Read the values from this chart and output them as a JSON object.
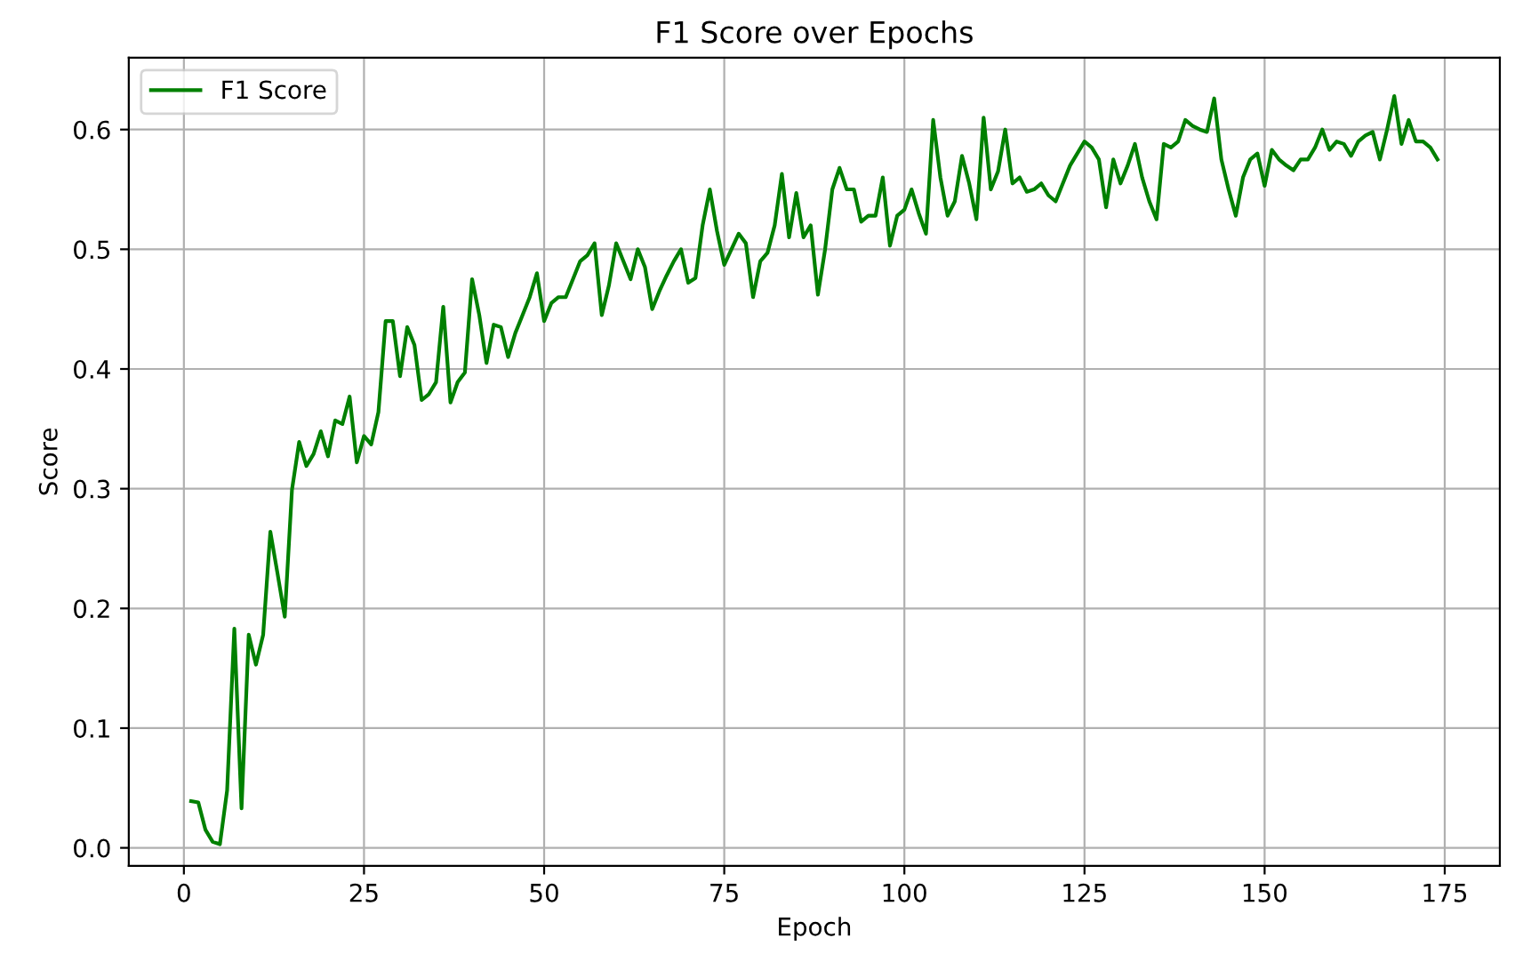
{
  "chart_data": {
    "type": "line",
    "title": "F1 Score over Epochs",
    "xlabel": "Epoch",
    "ylabel": "Score",
    "x": [
      1,
      2,
      3,
      4,
      5,
      6,
      7,
      8,
      9,
      10,
      11,
      12,
      13,
      14,
      15,
      16,
      17,
      18,
      19,
      20,
      21,
      22,
      23,
      24,
      25,
      26,
      27,
      28,
      29,
      30,
      31,
      32,
      33,
      34,
      35,
      36,
      37,
      38,
      39,
      40,
      41,
      42,
      43,
      44,
      45,
      46,
      47,
      48,
      49,
      50,
      51,
      52,
      53,
      54,
      55,
      56,
      57,
      58,
      59,
      60,
      61,
      62,
      63,
      64,
      65,
      66,
      67,
      68,
      69,
      70,
      71,
      72,
      73,
      74,
      75,
      76,
      77,
      78,
      79,
      80,
      81,
      82,
      83,
      84,
      85,
      86,
      87,
      88,
      89,
      90,
      91,
      92,
      93,
      94,
      95,
      96,
      97,
      98,
      99,
      100,
      101,
      102,
      103,
      104,
      105,
      106,
      107,
      108,
      109,
      110,
      111,
      112,
      113,
      114,
      115,
      116,
      117,
      118,
      119,
      120,
      121,
      122,
      123,
      124,
      125,
      126,
      127,
      128,
      129,
      130,
      131,
      132,
      133,
      134,
      135,
      136,
      137,
      138,
      139,
      140,
      141,
      142,
      143,
      144,
      145,
      146,
      147,
      148,
      149,
      150,
      151,
      152,
      153,
      154,
      155,
      156,
      157,
      158,
      159,
      160,
      161,
      162,
      163,
      164,
      165,
      166,
      167,
      168,
      169,
      170,
      171,
      172,
      173,
      174
    ],
    "series": [
      {
        "name": "F1 Score",
        "color": "#008000",
        "values": [
          0.039,
          0.038,
          0.015,
          0.005,
          0.003,
          0.048,
          0.183,
          0.033,
          0.178,
          0.153,
          0.178,
          0.264,
          0.229,
          0.193,
          0.299,
          0.339,
          0.319,
          0.329,
          0.348,
          0.327,
          0.357,
          0.354,
          0.377,
          0.322,
          0.344,
          0.337,
          0.364,
          0.44,
          0.44,
          0.394,
          0.435,
          0.42,
          0.374,
          0.379,
          0.389,
          0.452,
          0.372,
          0.389,
          0.397,
          0.475,
          0.445,
          0.405,
          0.437,
          0.435,
          0.41,
          0.43,
          0.445,
          0.46,
          0.48,
          0.44,
          0.455,
          0.46,
          0.46,
          0.475,
          0.49,
          0.495,
          0.505,
          0.445,
          0.47,
          0.505,
          0.49,
          0.475,
          0.5,
          0.485,
          0.45,
          0.465,
          0.478,
          0.49,
          0.5,
          0.472,
          0.476,
          0.52,
          0.55,
          0.515,
          0.487,
          0.5,
          0.513,
          0.505,
          0.46,
          0.49,
          0.497,
          0.52,
          0.563,
          0.51,
          0.547,
          0.51,
          0.52,
          0.462,
          0.5,
          0.55,
          0.568,
          0.55,
          0.55,
          0.523,
          0.528,
          0.528,
          0.56,
          0.503,
          0.528,
          0.533,
          0.55,
          0.53,
          0.513,
          0.608,
          0.56,
          0.528,
          0.54,
          0.578,
          0.555,
          0.525,
          0.61,
          0.55,
          0.565,
          0.6,
          0.555,
          0.56,
          0.548,
          0.55,
          0.555,
          0.545,
          0.54,
          0.555,
          0.57,
          0.58,
          0.59,
          0.585,
          0.575,
          0.535,
          0.575,
          0.555,
          0.57,
          0.588,
          0.56,
          0.54,
          0.525,
          0.588,
          0.585,
          0.59,
          0.608,
          0.603,
          0.6,
          0.598,
          0.626,
          0.575,
          0.55,
          0.528,
          0.56,
          0.575,
          0.58,
          0.553,
          0.583,
          0.575,
          0.57,
          0.566,
          0.575,
          0.575,
          0.585,
          0.6,
          0.583,
          0.59,
          0.588,
          0.578,
          0.59,
          0.595,
          0.598,
          0.575,
          0.6,
          0.628,
          0.588,
          0.608,
          0.59,
          0.59,
          0.585,
          0.575
        ]
      }
    ],
    "xlim": [
      -7.65,
      182.65
    ],
    "ylim": [
      -0.015,
      0.66
    ],
    "xticks": [
      0,
      25,
      50,
      75,
      100,
      125,
      150,
      175
    ],
    "yticks": [
      {
        "value": 0,
        "label": "0.0"
      },
      0.1,
      0.2,
      0.3,
      0.4,
      0.5,
      0.6
    ],
    "grid": true,
    "legend": "top left"
  }
}
